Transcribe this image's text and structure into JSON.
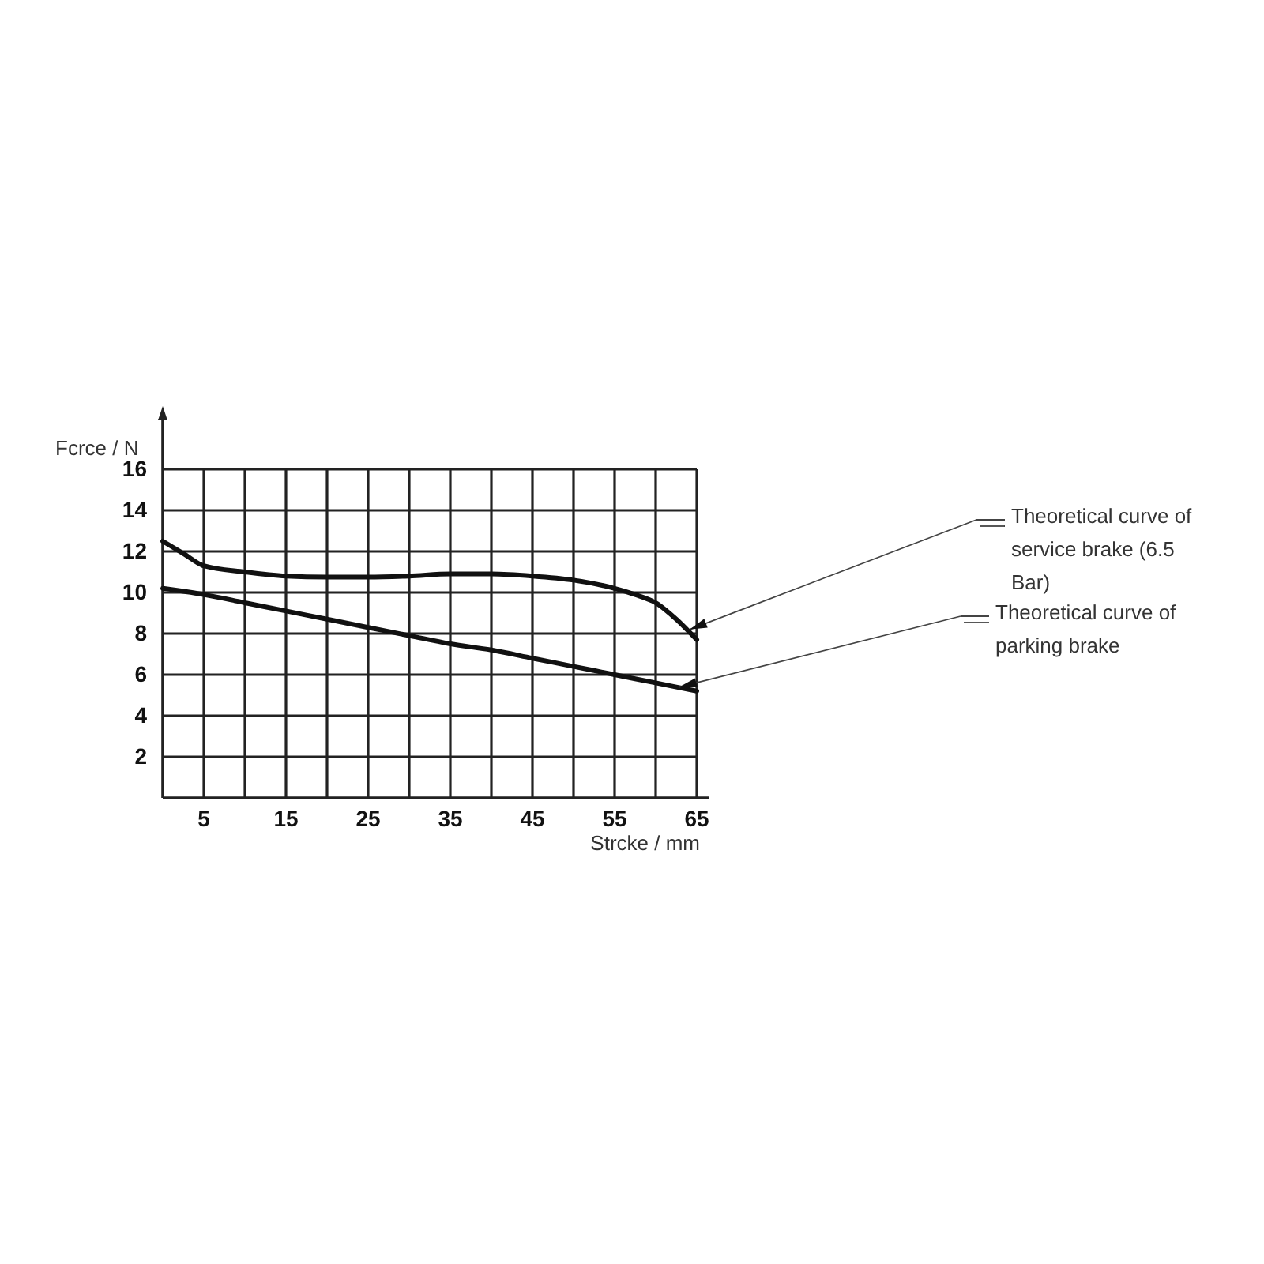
{
  "chart_data": {
    "type": "line",
    "xlabel": "Strcke / mm",
    "ylabel": "Fcrce / N",
    "xlim": [
      0,
      65
    ],
    "ylim": [
      0,
      16
    ],
    "xticks": [
      5,
      {
        "value": 10,
        "label": null
      },
      15,
      {
        "value": 20,
        "label": null
      },
      25,
      {
        "value": 30,
        "label": null
      },
      35,
      {
        "value": 40,
        "label": null
      },
      45,
      {
        "value": 50,
        "label": null
      },
      55,
      {
        "value": 60,
        "label": null
      },
      65
    ],
    "yticks": [
      2,
      4,
      6,
      8,
      10,
      12,
      14,
      16
    ],
    "grid": true,
    "line_style": "solid",
    "marker": "none",
    "series": [
      {
        "name": "Theoretical curve of service brake (6.5 Bar)",
        "color": "#111111",
        "x": [
          0,
          2.5,
          5,
          10,
          15,
          20,
          25,
          30,
          35,
          40,
          45,
          50,
          55,
          57.5,
          60,
          62.5,
          65
        ],
        "values": [
          12.5,
          11.9,
          11.3,
          11.0,
          10.8,
          10.75,
          10.75,
          10.8,
          10.9,
          10.9,
          10.8,
          10.6,
          10.2,
          9.9,
          9.5,
          8.7,
          7.7
        ]
      },
      {
        "name": "Theoretical curve of parking brake",
        "color": "#111111",
        "x": [
          0,
          5,
          10,
          15,
          20,
          25,
          30,
          35,
          40,
          45,
          50,
          55,
          60,
          65
        ],
        "values": [
          10.2,
          9.9,
          9.5,
          9.1,
          8.7,
          8.3,
          7.9,
          7.5,
          7.2,
          6.8,
          6.4,
          6.0,
          5.6,
          5.2
        ]
      }
    ]
  }
}
